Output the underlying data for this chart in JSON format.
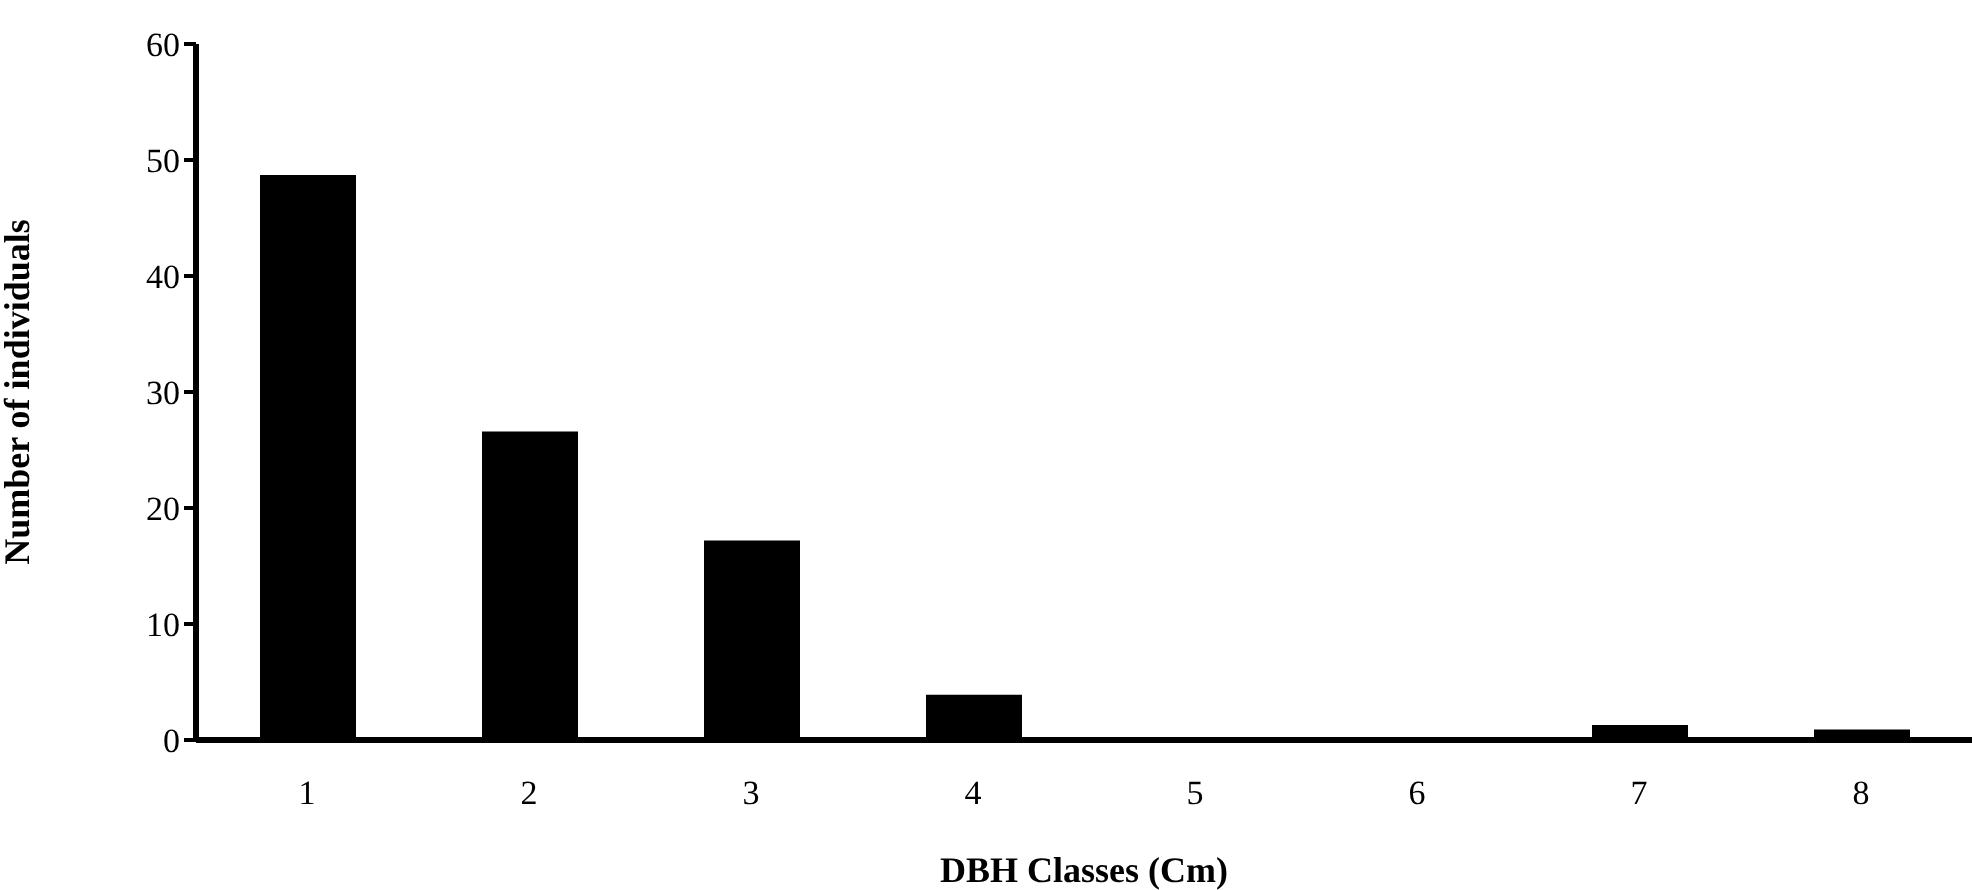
{
  "chart_data": {
    "type": "bar",
    "xlabel": "DBH Classes (Cm)",
    "ylabel": "Number of individuals",
    "categories": [
      "1",
      "2",
      "3",
      "4",
      "5",
      "6",
      "7",
      "8"
    ],
    "values": [
      48.7,
      26.6,
      17.2,
      3.9,
      0,
      0,
      1.3,
      0.9
    ],
    "color": "#000000",
    "ylim": [
      0,
      60
    ],
    "yticks": [
      0,
      10,
      20,
      30,
      40,
      50,
      60
    ],
    "grid": false
  }
}
